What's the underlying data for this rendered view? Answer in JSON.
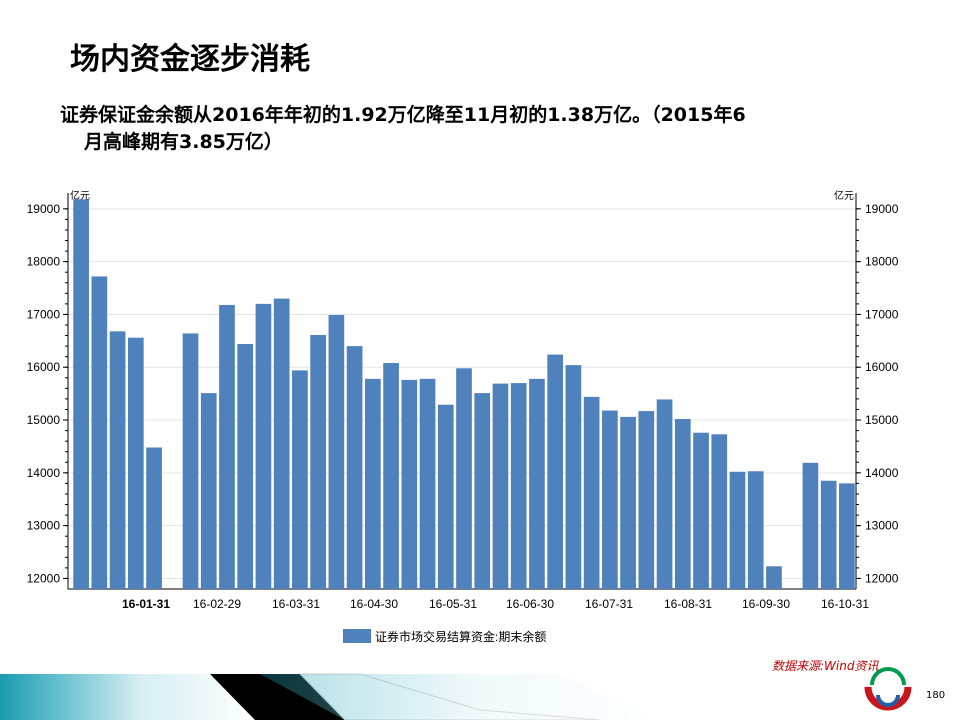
{
  "slide": {
    "title": "场内资金逐步消耗",
    "summary_line1": "证券保证金余额从2016年年初的1.92万亿降至11月初的1.38万亿。（2015年6",
    "summary_line2": "月高峰期有3.85万亿）",
    "source": "数据来源:Wind资讯",
    "page_number": "180"
  },
  "colors": {
    "bar": "#4f81bd",
    "bar_edge": "#3f6fa8",
    "grid": "#e4e4e4",
    "source": "#c00000"
  },
  "chart_data": {
    "type": "bar",
    "left_unit": "亿元",
    "right_unit": "亿元",
    "ylim": [
      11800,
      19300
    ],
    "yticks": [
      12000,
      13000,
      14000,
      15000,
      16000,
      17000,
      18000,
      19000
    ],
    "xtick_labels": [
      "16-01-31",
      "16-02-29",
      "16-03-31",
      "16-04-30",
      "16-05-31",
      "16-06-30",
      "16-07-31",
      "16-08-31",
      "16-09-30",
      "16-10-31"
    ],
    "grid": true,
    "legend_position": "bottom",
    "series": [
      {
        "name": "证券市场交易结算资金:期末余额",
        "values": [
          19180,
          17720,
          16680,
          16560,
          14480,
          null,
          16640,
          15510,
          17180,
          16440,
          17200,
          17300,
          15940,
          16610,
          16990,
          16400,
          15780,
          16080,
          15760,
          15780,
          15290,
          15980,
          15510,
          15690,
          15700,
          15780,
          16240,
          16040,
          15440,
          15180,
          15060,
          15170,
          15390,
          15020,
          14760,
          14730,
          14020,
          14030,
          12230,
          null,
          14190,
          13850,
          13800
        ]
      }
    ]
  }
}
